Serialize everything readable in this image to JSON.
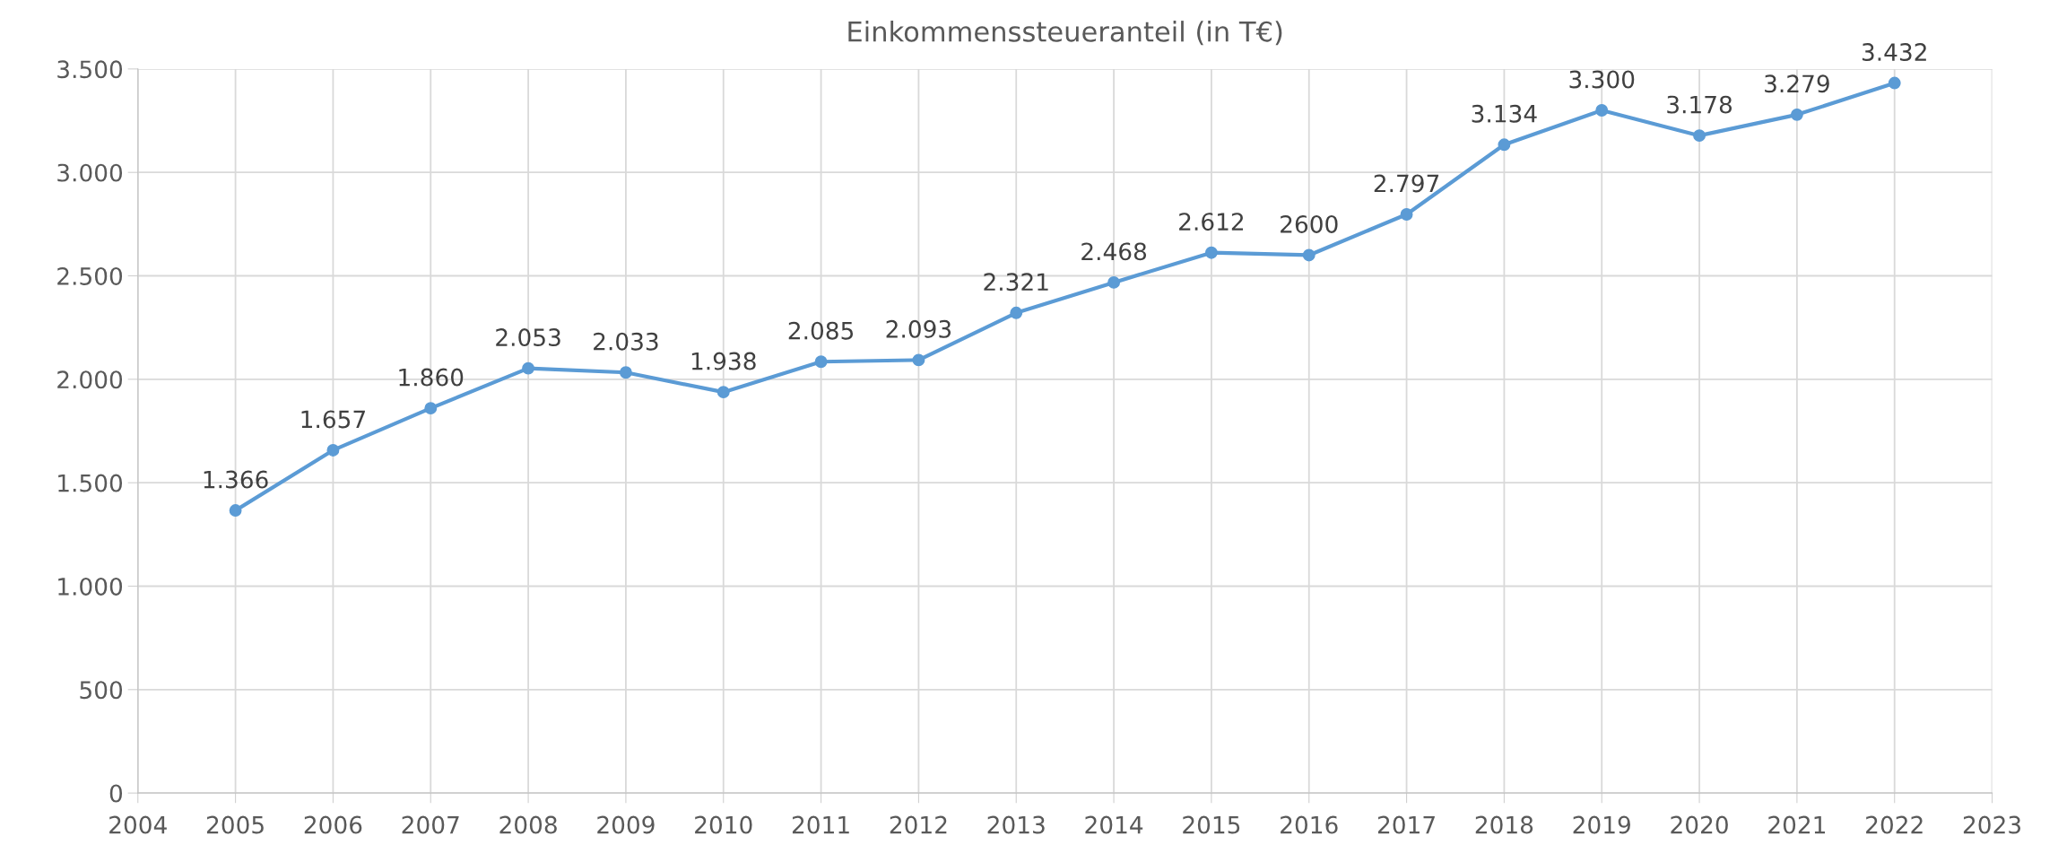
{
  "chart_data": {
    "type": "line",
    "title": "Einkommenssteueranteil (in T€)",
    "x": [
      2005,
      2006,
      2007,
      2008,
      2009,
      2010,
      2011,
      2012,
      2013,
      2014,
      2015,
      2016,
      2017,
      2018,
      2019,
      2020,
      2021,
      2022
    ],
    "series": [
      {
        "color": "#5b9bd5",
        "values": [
          1366,
          1657,
          1860,
          2053,
          2033,
          1938,
          2085,
          2093,
          2321,
          2468,
          2612,
          2600,
          2797,
          3134,
          3300,
          3178,
          3279,
          3432
        ],
        "value_labels": [
          "1.366",
          "1.657",
          "1.860",
          "2.053",
          "2.033",
          "1.938",
          "2.085",
          "2.093",
          "2.321",
          "2.468",
          "2.612",
          "2600",
          "2.797",
          "3.134",
          "3.300",
          "3.178",
          "3.279",
          "3.432"
        ]
      }
    ],
    "xlim": [
      2004,
      2023
    ],
    "xticks": [
      2004,
      2005,
      2006,
      2007,
      2008,
      2009,
      2010,
      2011,
      2012,
      2013,
      2014,
      2015,
      2016,
      2017,
      2018,
      2019,
      2020,
      2021,
      2022,
      2023
    ],
    "ylim": [
      0,
      3500
    ],
    "yticks": [
      {
        "value": 0,
        "label": "0"
      },
      {
        "value": 500,
        "label": "500"
      },
      {
        "value": 1000,
        "label": "1.000"
      },
      {
        "value": 1500,
        "label": "1.500"
      },
      {
        "value": 2000,
        "label": "2.000"
      },
      {
        "value": 2500,
        "label": "2.500"
      },
      {
        "value": 3000,
        "label": "3.000"
      },
      {
        "value": 3500,
        "label": "3.500"
      }
    ],
    "grid": true,
    "marker": "circle",
    "line_style": "solid",
    "legend": false
  }
}
